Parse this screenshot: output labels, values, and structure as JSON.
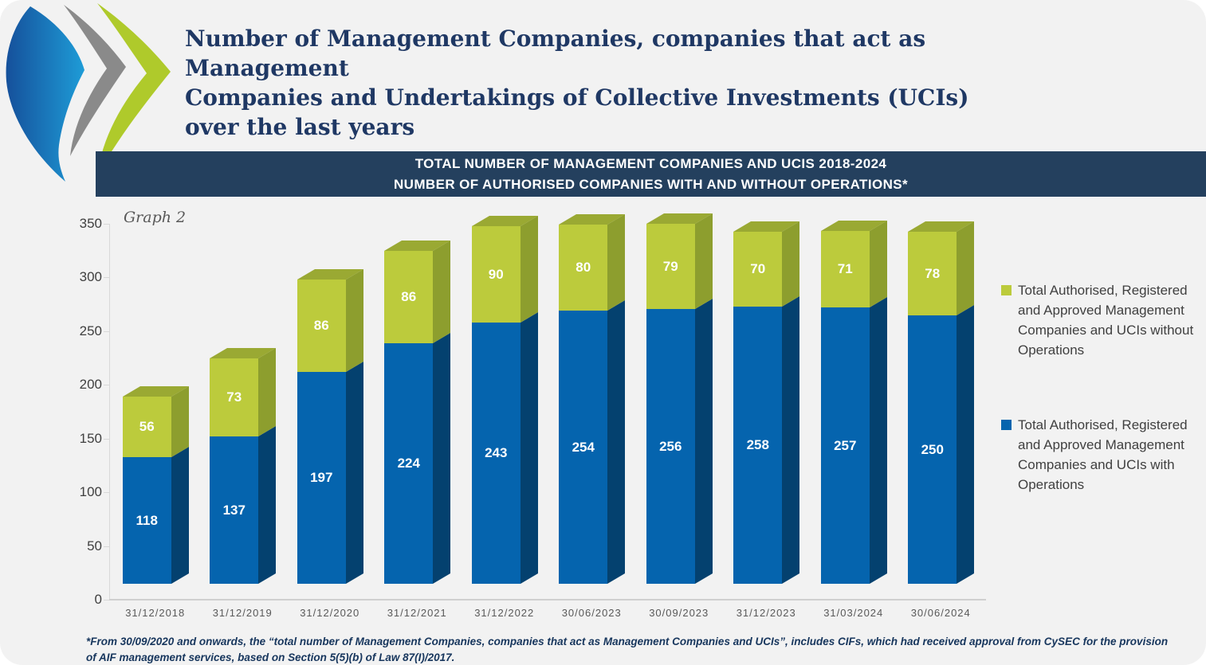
{
  "header": {
    "title": "Number of Management Companies, companies that act as Management\nCompanies and Undertakings of Collective Investments (UCIs)\nover the last years"
  },
  "colors": {
    "background": "#F2F2F2",
    "banner_bg": "#24405E",
    "title_text": "#1F3864",
    "blue_front": "#0564AE",
    "blue_side": "#04416F",
    "green_front": "#BCCB3C",
    "green_side": "#8D9E2E",
    "green_top": "#9AA933",
    "axis_text": "#404040",
    "xlabel_text": "#595959",
    "legend_text": "#404040",
    "footnote_text": "#17365D"
  },
  "chart_data": {
    "type": "bar",
    "stacked": true,
    "title_line1": "TOTAL NUMBER OF MANAGEMENT COMPANIES AND UCIS 2018-2024",
    "title_line2": "NUMBER OF AUTHORISED COMPANIES WITH AND WITHOUT OPERATIONS*",
    "annotation": "Graph 2",
    "categories": [
      "31/12/2018",
      "31/12/2019",
      "31/12/2020",
      "31/12/2021",
      "31/12/2022",
      "30/06/2023",
      "30/09/2023",
      "31/12/2023",
      "31/03/2024",
      "30/06/2024"
    ],
    "series": [
      {
        "name": "Total Authorised, Registered and Approved Management Companies and UCIs with Operations",
        "color": "#0564AE",
        "values": [
          118,
          137,
          197,
          224,
          243,
          254,
          256,
          258,
          257,
          250
        ]
      },
      {
        "name": "Total Authorised, Registered and Approved Management Companies and UCIs without Operations",
        "color": "#BCCB3C",
        "values": [
          56,
          73,
          86,
          86,
          90,
          80,
          79,
          70,
          71,
          78
        ]
      }
    ],
    "ylim": [
      0,
      350
    ],
    "yticks": [
      0,
      50,
      100,
      150,
      200,
      250,
      300,
      350
    ],
    "grid": false,
    "legend_position": "right"
  },
  "legend": {
    "items": [
      {
        "label": "Total Authorised, Registered and Approved Management Companies and UCIs without Operations",
        "color": "#BCCB3C"
      },
      {
        "label": "Total Authorised, Registered and Approved Management Companies and UCIs with Operations",
        "color": "#0564AE"
      }
    ]
  },
  "footnote": {
    "line1": "*From 30/09/2020 and onwards, the “total number of Management Companies, companies that act as Management Companies and UCIs”, includes CIFs, which had received approval from CySEC for the provision",
    "line2": "of AIF management services, based on Section 5(5)(b) of Law 87(I)/2017."
  }
}
